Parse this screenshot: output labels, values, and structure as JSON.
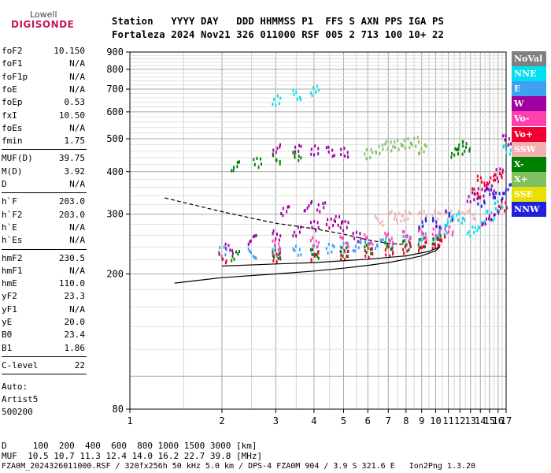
{
  "logo": {
    "top": "Lowell",
    "bottom": "DIGISONDE"
  },
  "header": {
    "line1": "Station   YYYY DAY   DDD HHMMSS P1  FFS S AXN PPS IGA PS",
    "line2": "Fortaleza 2024 Nov21 326 011000 RSF 005 2 713 100 10+ 22"
  },
  "params1": [
    {
      "label": "foF2",
      "value": "10.150"
    },
    {
      "label": "foF1",
      "value": "N/A"
    },
    {
      "label": "foF1p",
      "value": "N/A"
    },
    {
      "label": "foE",
      "value": "N/A"
    },
    {
      "label": "foEp",
      "value": "0.53"
    },
    {
      "label": "fxI",
      "value": "10.50"
    },
    {
      "label": "foEs",
      "value": "N/A"
    },
    {
      "label": "fmin",
      "value": "1.75"
    }
  ],
  "params2": [
    {
      "label": "MUF(D)",
      "value": "39.75"
    },
    {
      "label": "M(D)",
      "value": "3.92"
    },
    {
      "label": "D",
      "value": "N/A"
    }
  ],
  "params3": [
    {
      "label": "h`F",
      "value": "203.0"
    },
    {
      "label": "h`F2",
      "value": "203.0"
    },
    {
      "label": "h`E",
      "value": "N/A"
    },
    {
      "label": "h`Es",
      "value": "N/A"
    }
  ],
  "params4": [
    {
      "label": "hmF2",
      "value": "230.5"
    },
    {
      "label": "hmF1",
      "value": "N/A"
    },
    {
      "label": "hmE",
      "value": "110.0"
    },
    {
      "label": "yF2",
      "value": "23.3"
    },
    {
      "label": "yF1",
      "value": "N/A"
    },
    {
      "label": "yE",
      "value": "20.0"
    },
    {
      "label": "B0",
      "value": "23.4"
    },
    {
      "label": "B1",
      "value": "1.86"
    }
  ],
  "params5": [
    {
      "label": "C-level",
      "value": "22"
    }
  ],
  "auto": {
    "line1": "Auto:",
    "line2": "Artist5",
    "line3": "500200"
  },
  "legend": [
    {
      "label": "NoVal",
      "color": "#808080"
    },
    {
      "label": "NNE",
      "color": "#00e0f0"
    },
    {
      "label": "E",
      "color": "#3ea0f0"
    },
    {
      "label": "W",
      "color": "#a000a0"
    },
    {
      "label": "Vo-",
      "color": "#ff40b0"
    },
    {
      "label": "Vo+",
      "color": "#f00030"
    },
    {
      "label": "SSW",
      "color": "#f4b0b0"
    },
    {
      "label": "X-",
      "color": "#008000"
    },
    {
      "label": "X+",
      "color": "#80c060"
    },
    {
      "label": "SSE",
      "color": "#e8e000"
    },
    {
      "label": "NNW",
      "color": "#2020e0"
    }
  ],
  "bottom": {
    "line1": "D     100  200  400  600  800 1000 1500 3000 [km]",
    "line2": "MUF  10.5 10.7 11.3 12.4 14.0 16.2 22.7 39.8 [MHz]",
    "line3": "FZA0M_2024326011000.RSF / 320fx256h 50 kHz 5.0 km / DPS-4 FZA0M 904 / 3.9 S 321.6 E   Ion2Png 1.3.20"
  },
  "chart_data": {
    "type": "scatter",
    "title": "",
    "xlabel": "",
    "ylabel": "",
    "x_ticks": [
      1,
      2,
      3,
      4,
      5,
      6,
      7,
      8,
      9,
      10,
      11,
      12,
      13,
      14,
      15,
      16,
      17
    ],
    "y_ticks": [
      80,
      200,
      300,
      400,
      500,
      600,
      700,
      800,
      900
    ],
    "x_range": [
      1,
      17
    ],
    "y_range": [
      80,
      900
    ],
    "x_scale": "log",
    "y_scale": "log",
    "grid": true,
    "legend_position": "right",
    "series": [
      {
        "color": "#a000a0",
        "points": [
          [
            2.1,
            240
          ],
          [
            2.5,
            255
          ],
          [
            3,
            262
          ],
          [
            3.5,
            270
          ],
          [
            4,
            280
          ],
          [
            4.5,
            285
          ],
          [
            5,
            280
          ],
          [
            5.5,
            260
          ],
          [
            3.2,
            310
          ],
          [
            3.8,
            320
          ],
          [
            4.2,
            318
          ],
          [
            4.8,
            290
          ]
        ]
      },
      {
        "color": "#3ea0f0",
        "points": [
          [
            2,
            235
          ],
          [
            2.5,
            232
          ],
          [
            3,
            235
          ],
          [
            3.5,
            236
          ],
          [
            4,
            238
          ],
          [
            4.5,
            240
          ],
          [
            5,
            241
          ],
          [
            5.5,
            244
          ],
          [
            6,
            246
          ],
          [
            6.5,
            248
          ],
          [
            7,
            250
          ],
          [
            8,
            254
          ],
          [
            9,
            258
          ],
          [
            10,
            262
          ],
          [
            10.5,
            268
          ]
        ]
      },
      {
        "color": "#008000",
        "points": [
          [
            2.2,
            228
          ],
          [
            3,
            230
          ],
          [
            4,
            232
          ],
          [
            5,
            234
          ],
          [
            6,
            238
          ],
          [
            7,
            242
          ],
          [
            8,
            246
          ],
          [
            9,
            250
          ],
          [
            10,
            254
          ]
        ]
      },
      {
        "color": "#f00030",
        "points": [
          [
            2,
            225
          ],
          [
            3,
            226
          ],
          [
            4,
            228
          ],
          [
            5,
            230
          ],
          [
            6,
            233
          ],
          [
            7,
            236
          ],
          [
            8,
            240
          ],
          [
            9,
            244
          ],
          [
            10,
            248
          ],
          [
            10.4,
            252
          ]
        ]
      },
      {
        "color": "#ff40b0",
        "points": [
          [
            3,
            245
          ],
          [
            4,
            250
          ],
          [
            5,
            252
          ],
          [
            6,
            255
          ],
          [
            7,
            258
          ],
          [
            8,
            262
          ],
          [
            9,
            265
          ],
          [
            10,
            270
          ],
          [
            11,
            272
          ]
        ]
      },
      {
        "color": "#f4b0b0",
        "points": [
          [
            7.2,
            300
          ],
          [
            8,
            300
          ],
          [
            9,
            300
          ],
          [
            10,
            300
          ],
          [
            11,
            300
          ],
          [
            12,
            300
          ],
          [
            13,
            302
          ],
          [
            6.5,
            290
          ],
          [
            7.5,
            295
          ]
        ]
      },
      {
        "color": "#2020e0",
        "points": [
          [
            9,
            285
          ],
          [
            10,
            285
          ],
          [
            11,
            300
          ],
          [
            14,
            330
          ],
          [
            15,
            350
          ],
          [
            16,
            340
          ],
          [
            17,
            360
          ]
        ]
      },
      {
        "color": "#00e0f0",
        "points": [
          [
            11,
            290
          ],
          [
            12,
            295
          ],
          [
            13,
            270
          ],
          [
            14,
            280
          ],
          [
            15,
            300
          ],
          [
            16,
            320
          ],
          [
            17,
            470
          ],
          [
            3,
            655
          ],
          [
            3.5,
            680
          ],
          [
            4,
            700
          ]
        ]
      },
      {
        "color": "#a000a0",
        "points": [
          [
            3,
            470
          ],
          [
            3.5,
            468
          ],
          [
            4,
            466
          ],
          [
            4.5,
            462
          ],
          [
            5,
            460
          ],
          [
            13,
            340
          ],
          [
            14,
            350
          ],
          [
            15,
            360
          ],
          [
            16,
            400
          ],
          [
            17,
            500
          ],
          [
            14.5,
            290
          ],
          [
            15.5,
            300
          ]
        ]
      },
      {
        "color": "#80c060",
        "points": [
          [
            6,
            455
          ],
          [
            6.5,
            470
          ],
          [
            7,
            480
          ],
          [
            7.5,
            485
          ],
          [
            8,
            490
          ],
          [
            8.5,
            495
          ],
          [
            9,
            470
          ]
        ]
      },
      {
        "color": "#008000",
        "points": [
          [
            2.2,
            420
          ],
          [
            2.6,
            430
          ],
          [
            3,
            440
          ],
          [
            3.5,
            450
          ],
          [
            11.5,
            460
          ],
          [
            12,
            470
          ],
          [
            12.5,
            480
          ]
        ]
      },
      {
        "color": "#f00030",
        "points": [
          [
            14,
            380
          ],
          [
            15,
            380
          ],
          [
            16,
            390
          ],
          [
            13.5,
            350
          ],
          [
            16.5,
            320
          ]
        ]
      }
    ],
    "curves": [
      {
        "style": "solid",
        "points": [
          [
            1.4,
            188
          ],
          [
            2,
            195
          ],
          [
            3,
            200
          ],
          [
            4,
            204
          ],
          [
            5,
            208
          ],
          [
            6,
            212
          ],
          [
            7,
            216
          ],
          [
            8,
            221
          ],
          [
            9,
            226
          ],
          [
            10,
            234
          ],
          [
            10.3,
            240
          ],
          [
            9.5,
            233
          ],
          [
            8,
            226
          ],
          [
            6,
            221
          ],
          [
            4,
            216
          ],
          [
            3,
            214
          ],
          [
            2,
            211
          ]
        ]
      },
      {
        "style": "dashed",
        "points": [
          [
            1.3,
            335
          ],
          [
            1.6,
            320
          ],
          [
            2,
            305
          ],
          [
            2.5,
            292
          ],
          [
            3,
            282
          ],
          [
            4,
            272
          ],
          [
            5,
            262
          ],
          [
            6,
            252
          ],
          [
            7,
            246
          ],
          [
            8,
            244
          ]
        ]
      }
    ]
  }
}
